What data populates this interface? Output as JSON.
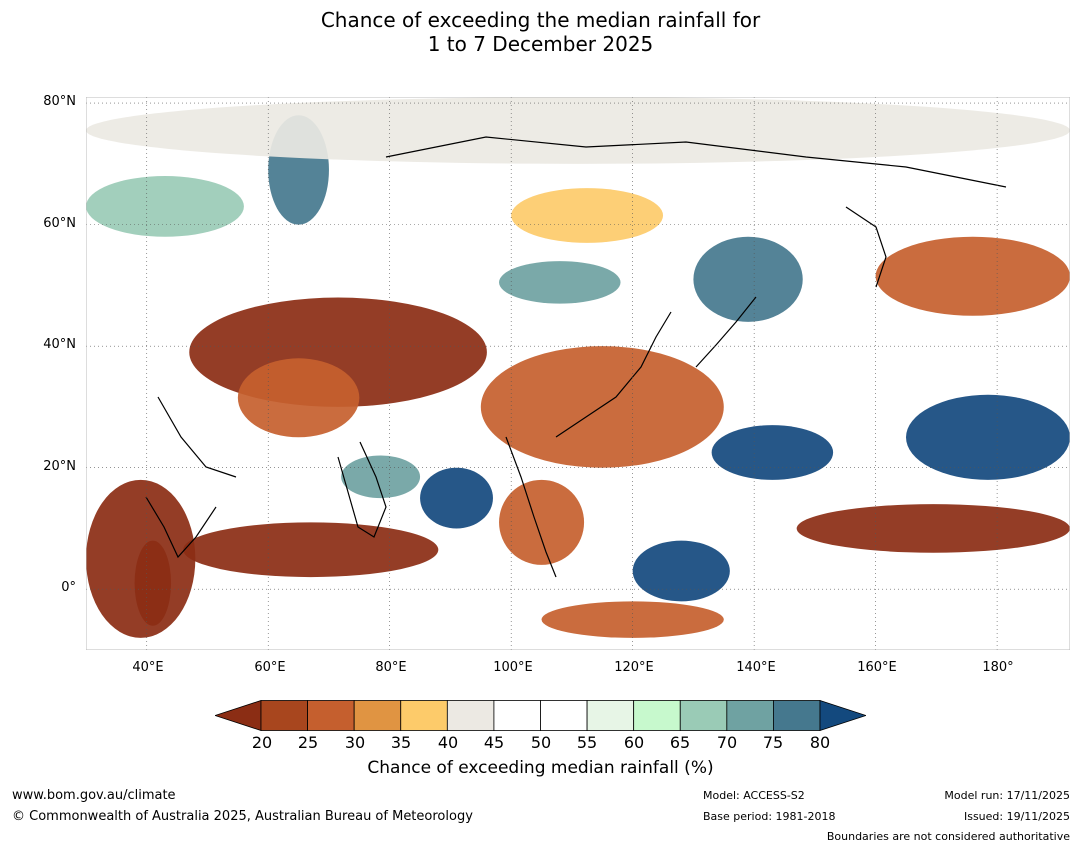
{
  "title": {
    "line1": "Chance of exceeding the median rainfall for",
    "line2": "1 to 7 December 2025"
  },
  "map": {
    "lat_labels": [
      "80°N",
      "60°N",
      "40°N",
      "20°N",
      "0°"
    ],
    "lon_labels": [
      "40°E",
      "60°E",
      "80°E",
      "100°E",
      "120°E",
      "140°E",
      "160°E",
      "180°"
    ],
    "lon_range": [
      30,
      192
    ],
    "lat_range": [
      -10,
      81
    ],
    "regions": [
      {
        "name": "arabia-sahara-dry",
        "cat": 20,
        "lon": [
          30,
          48
        ],
        "lat": [
          -8,
          18
        ]
      },
      {
        "name": "east-africa-dry",
        "cat": 20,
        "lon": [
          38,
          44
        ],
        "lat": [
          -6,
          8
        ]
      },
      {
        "name": "arabian-sea-dry",
        "cat": 20,
        "lon": [
          46,
          88
        ],
        "lat": [
          2,
          11
        ]
      },
      {
        "name": "central-asia-dry",
        "cat": 20,
        "lon": [
          47,
          96
        ],
        "lat": [
          30,
          48
        ]
      },
      {
        "name": "tibet-china-dry",
        "cat": 25,
        "lon": [
          95,
          135
        ],
        "lat": [
          20,
          40
        ]
      },
      {
        "name": "iran-pakistan-dry",
        "cat": 25,
        "lon": [
          55,
          75
        ],
        "lat": [
          25,
          38
        ]
      },
      {
        "name": "siberia-dry",
        "cat": 35,
        "lon": [
          100,
          125
        ],
        "lat": [
          57,
          66
        ]
      },
      {
        "name": "kamchatka-dry",
        "cat": 25,
        "lon": [
          160,
          192
        ],
        "lat": [
          45,
          58
        ]
      },
      {
        "name": "west-pacific-dry",
        "cat": 20,
        "lon": [
          147,
          192
        ],
        "lat": [
          6,
          14
        ]
      },
      {
        "name": "indochina-dry",
        "cat": 25,
        "lon": [
          98,
          112
        ],
        "lat": [
          4,
          18
        ]
      },
      {
        "name": "indonesia-dry",
        "cat": 25,
        "lon": [
          105,
          135
        ],
        "lat": [
          -8,
          -2
        ]
      },
      {
        "name": "bay-of-bengal-wet",
        "cat": 80,
        "lon": [
          85,
          97
        ],
        "lat": [
          10,
          20
        ]
      },
      {
        "name": "india-wet",
        "cat": 70,
        "lon": [
          72,
          85
        ],
        "lat": [
          15,
          22
        ]
      },
      {
        "name": "philippine-sea-wet",
        "cat": 80,
        "lon": [
          133,
          153
        ],
        "lat": [
          18,
          27
        ]
      },
      {
        "name": "north-pacific-wet",
        "cat": 80,
        "lon": [
          165,
          192
        ],
        "lat": [
          18,
          32
        ]
      },
      {
        "name": "borneo-sea-wet",
        "cat": 80,
        "lon": [
          120,
          136
        ],
        "lat": [
          -2,
          8
        ]
      },
      {
        "name": "manchuria-wet",
        "cat": 75,
        "lon": [
          130,
          148
        ],
        "lat": [
          44,
          58
        ]
      },
      {
        "name": "mongolia-wet",
        "cat": 70,
        "lon": [
          98,
          118
        ],
        "lat": [
          47,
          54
        ]
      },
      {
        "name": "kara-sea-wet",
        "cat": 75,
        "lon": [
          60,
          70
        ],
        "lat": [
          60,
          78
        ]
      },
      {
        "name": "scandinavia-wet",
        "cat": 65,
        "lon": [
          30,
          56
        ],
        "lat": [
          58,
          68
        ]
      },
      {
        "name": "polar-neutral",
        "cat": 40,
        "lon": [
          30,
          192
        ],
        "lat": [
          70,
          81
        ]
      }
    ]
  },
  "colorbar": {
    "levels": [
      20,
      25,
      30,
      35,
      40,
      45,
      50,
      55,
      60,
      65,
      70,
      75,
      80
    ],
    "tick_labels": [
      "20",
      "25",
      "30",
      "35",
      "40",
      "45",
      "50",
      "55",
      "60",
      "65",
      "70",
      "75",
      "80"
    ],
    "colors": [
      "#8b2d14",
      "#a8461e",
      "#c55f2e",
      "#e09442",
      "#fdcb6a",
      "#ece9e3",
      "#ffffff",
      "#ffffff",
      "#e7f5e6",
      "#c7f9cd",
      "#9acbb6",
      "#6fa2a2",
      "#45788e",
      "#13497e"
    ],
    "label": "Chance of exceeding median rainfall (%)"
  },
  "footer": {
    "website": "www.bom.gov.au/climate",
    "copyright": "© Commonwealth of Australia 2025, Australian Bureau of Meteorology",
    "model": "Model: ACCESS-S2",
    "base_period": "Base period: 1981-2018",
    "model_run": "Model run: 17/11/2025",
    "issued": "Issued: 19/11/2025",
    "disclaimer": "Boundaries are not considered authoritative"
  }
}
